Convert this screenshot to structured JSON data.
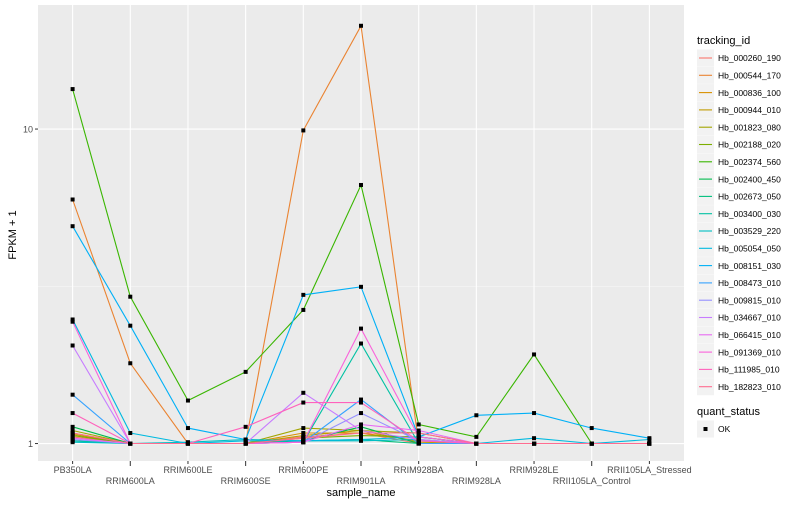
{
  "chart_data": {
    "type": "line",
    "xlabel": "sample_name",
    "ylabel": "FPKM + 1",
    "y_scale": "log10",
    "ylim": [
      0.88,
      24.8
    ],
    "y_ticks": [
      1,
      10
    ],
    "y_tick_labels": [
      "1",
      "10"
    ],
    "grid": true,
    "legend_position": "right",
    "categories": [
      "PB350LA",
      "RRIM600LA",
      "RRIM600LE",
      "RRIM600SE",
      "RRIM600PE",
      "RRIM901LA",
      "RRIM928BA",
      "RRIM928LA",
      "RRIM928LE",
      "RRII105LA_Control",
      "RRII105LA_Stressed"
    ],
    "legend_title": "tracking_id",
    "series": [
      {
        "name": "Hb_000260_190",
        "color": "#F8766D",
        "values": [
          1.05,
          1,
          1,
          1,
          1.05,
          1.08,
          1,
          1,
          1,
          1,
          1
        ]
      },
      {
        "name": "Hb_000544_170",
        "color": "#EA8331",
        "values": [
          5.97,
          1.8,
          1,
          1,
          9.9,
          21.3,
          1,
          1,
          1,
          1,
          1
        ]
      },
      {
        "name": "Hb_000836_100",
        "color": "#D89000",
        "values": [
          1.08,
          1,
          1,
          1,
          1.08,
          1.08,
          1.02,
          1,
          1,
          1,
          1
        ]
      },
      {
        "name": "Hb_000944_010",
        "color": "#C09B00",
        "values": [
          1.07,
          1,
          1,
          1,
          1.06,
          1.1,
          1.01,
          1,
          1,
          1,
          1
        ]
      },
      {
        "name": "Hb_001823_080",
        "color": "#A3A500",
        "values": [
          1.1,
          1,
          1,
          1,
          1.12,
          1.1,
          1.08,
          1,
          1,
          1,
          1
        ]
      },
      {
        "name": "Hb_002188_020",
        "color": "#7CAE00",
        "values": [
          1.06,
          1,
          1,
          1,
          1.04,
          1.06,
          1.05,
          1,
          1,
          1,
          1
        ]
      },
      {
        "name": "Hb_002374_560",
        "color": "#39B600",
        "values": [
          13.4,
          2.93,
          1.37,
          1.69,
          2.66,
          6.64,
          1.15,
          1.05,
          1.92,
          1,
          1
        ]
      },
      {
        "name": "Hb_002400_450",
        "color": "#00BB4E",
        "values": [
          1.13,
          1,
          1,
          1,
          1.02,
          1.13,
          1,
          1,
          1,
          1,
          1
        ]
      },
      {
        "name": "Hb_002673_050",
        "color": "#00BF7D",
        "values": [
          1.02,
          1,
          1,
          1,
          1.02,
          1.03,
          1,
          1,
          1,
          1,
          1
        ]
      },
      {
        "name": "Hb_003400_030",
        "color": "#00C1A3",
        "values": [
          1.02,
          1,
          1,
          1,
          1.01,
          2.08,
          1,
          1,
          1,
          1,
          1
        ]
      },
      {
        "name": "Hb_003529_220",
        "color": "#00BFC4",
        "values": [
          1.01,
          1,
          1.01,
          1.03,
          1.02,
          1.02,
          1.03,
          1,
          1,
          1,
          1
        ]
      },
      {
        "name": "Hb_005054_050",
        "color": "#00BAE0",
        "values": [
          2.48,
          1.08,
          1,
          1.02,
          1.02,
          1.03,
          1.05,
          1,
          1.04,
          1,
          1.03
        ]
      },
      {
        "name": "Hb_008151_030",
        "color": "#00B0F6",
        "values": [
          4.91,
          2.37,
          1.12,
          1.03,
          2.97,
          3.15,
          1.05,
          1.23,
          1.25,
          1.12,
          1.04
        ]
      },
      {
        "name": "Hb_008473_010",
        "color": "#35A2FF",
        "values": [
          1.43,
          1,
          1,
          1,
          1.01,
          1.38,
          1,
          1,
          1,
          1,
          1
        ]
      },
      {
        "name": "Hb_009815_010",
        "color": "#9590FF",
        "values": [
          1.03,
          1,
          1,
          1,
          1.01,
          1.25,
          1.02,
          1,
          1,
          1,
          1
        ]
      },
      {
        "name": "Hb_034667_010",
        "color": "#C77CFF",
        "values": [
          2.05,
          1,
          1,
          1,
          1.45,
          1.1,
          1.03,
          1,
          1,
          1,
          1
        ]
      },
      {
        "name": "Hb_066415_010",
        "color": "#E76BF3",
        "values": [
          1.04,
          1,
          1,
          1,
          1.01,
          1.15,
          1.1,
          1,
          1,
          1,
          1
        ]
      },
      {
        "name": "Hb_091369_010",
        "color": "#FA62DB",
        "values": [
          2.44,
          1,
          1,
          1,
          1.01,
          2.32,
          1.05,
          1,
          1,
          1,
          1
        ]
      },
      {
        "name": "Hb_111985_010",
        "color": "#FF62BC",
        "values": [
          1.25,
          1,
          1,
          1.13,
          1.35,
          1.35,
          1.02,
          1,
          1,
          1,
          1
        ]
      },
      {
        "name": "Hb_182823_010",
        "color": "#FF6C90",
        "values": [
          1.08,
          1,
          1,
          1,
          1.04,
          1.08,
          1.08,
          1,
          1,
          1,
          1
        ]
      }
    ],
    "point_legend_title": "quant_status",
    "point_legend_items": [
      "OK"
    ]
  }
}
